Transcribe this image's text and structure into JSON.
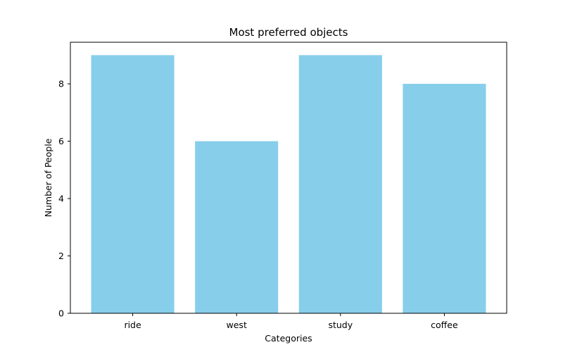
{
  "chart_data": {
    "type": "bar",
    "title": "Most preferred objects",
    "xlabel": "Categories",
    "ylabel": "Number of People",
    "categories": [
      "ride",
      "west",
      "study",
      "coffee"
    ],
    "values": [
      9,
      6,
      9,
      8
    ],
    "ylim": [
      0,
      9.45
    ],
    "yticks": [
      0,
      2,
      4,
      6,
      8
    ],
    "bar_color": "#87CEEB",
    "grid": false,
    "legend": "none"
  }
}
